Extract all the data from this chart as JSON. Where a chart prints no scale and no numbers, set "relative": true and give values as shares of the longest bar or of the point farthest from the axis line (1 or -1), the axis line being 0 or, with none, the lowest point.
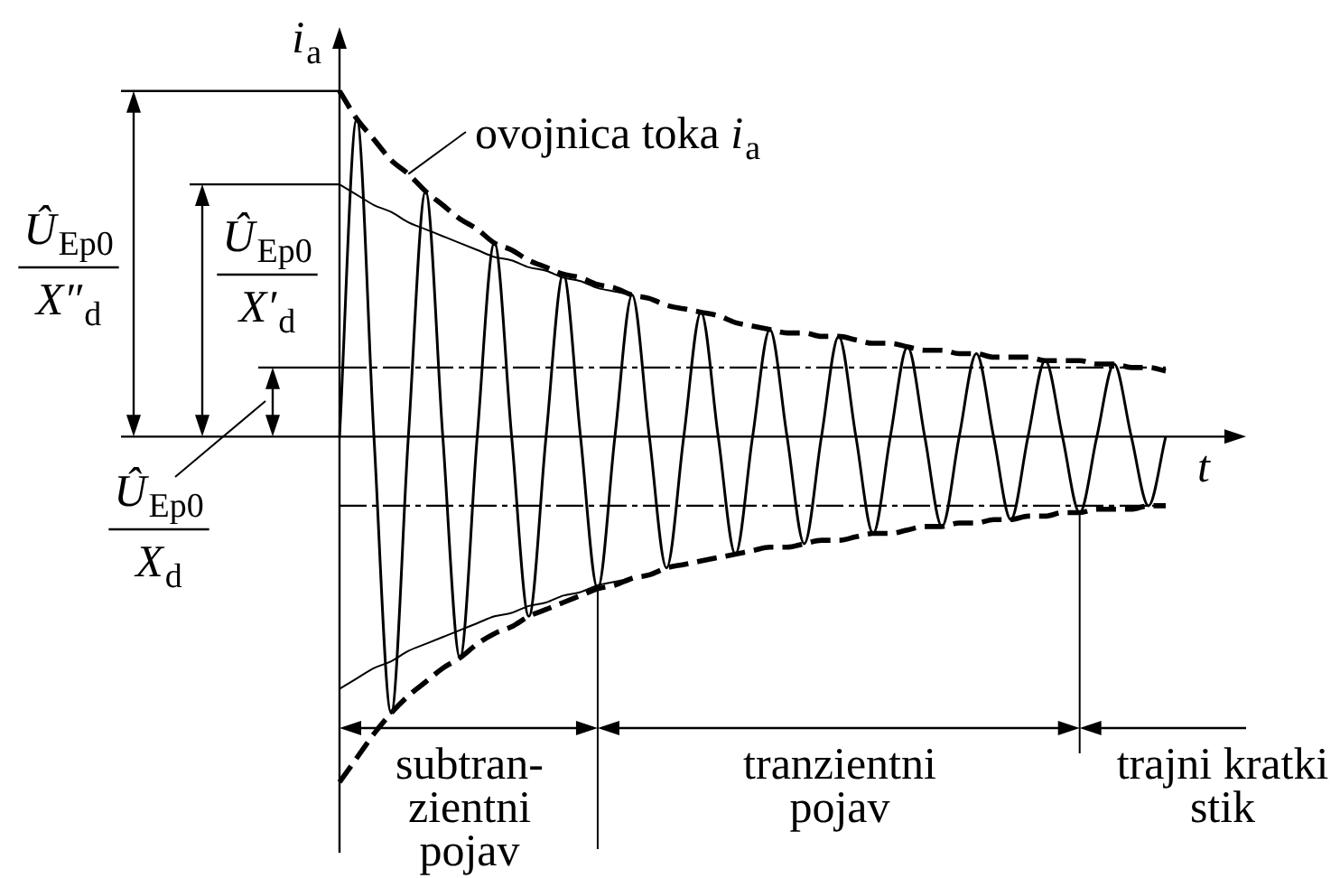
{
  "chart_data": {
    "type": "line",
    "relative": true,
    "xlabel": "t",
    "ylabel": "i$_{a}$",
    "legend": false,
    "marker": "none",
    "line_style": "solid",
    "categories": [
      null,
      null,
      null,
      null,
      null,
      null,
      null,
      null,
      null,
      null,
      null,
      null,
      null,
      null,
      null,
      null,
      null,
      null,
      null,
      null,
      null,
      null,
      null,
      null,
      null,
      null,
      null,
      null,
      null,
      null,
      null,
      null,
      null,
      null,
      null,
      null,
      null,
      null,
      null,
      null,
      null,
      null,
      null,
      null,
      null,
      null,
      null,
      null,
      null
    ],
    "series": [
      {
        "color": "#000000",
        "values": [
          0,
          0.92,
          0,
          -0.8,
          0,
          0.71,
          0,
          -0.64,
          0,
          0.56,
          0,
          -0.52,
          0,
          0.47,
          0,
          -0.44,
          0,
          0.41,
          0,
          -0.38,
          0,
          0.36,
          0,
          -0.34,
          0,
          0.31,
          0,
          -0.31,
          0,
          0.29,
          0,
          -0.28,
          0,
          0.26,
          0,
          -0.26,
          0,
          0.24,
          0,
          -0.24,
          0,
          0.22,
          0,
          -0.22,
          0,
          0.21,
          0,
          -0.2,
          0
        ]
      },
      {
        "color": "#000000",
        "line_style": "dashed",
        "values": [
          1,
          0.92,
          0.86,
          0.8,
          0.76,
          0.71,
          0.67,
          0.63,
          0.6,
          0.56,
          0.54,
          0.51,
          0.49,
          0.47,
          0.46,
          0.44,
          0.43,
          0.41,
          0.4,
          0.38,
          0.37,
          0.36,
          0.35,
          0.33,
          0.32,
          0.31,
          0.3,
          0.3,
          0.29,
          0.29,
          0.28,
          0.27,
          0.27,
          0.26,
          0.25,
          0.25,
          0.24,
          0.24,
          0.23,
          0.23,
          0.23,
          0.22,
          0.22,
          0.22,
          0.21,
          0.21,
          0.2,
          0.2,
          0.19
        ]
      },
      {
        "color": "#000000",
        "line_style": "dashed",
        "values": [
          -1,
          -0.93,
          -0.86,
          -0.8,
          -0.75,
          -0.71,
          -0.67,
          -0.64,
          -0.6,
          -0.57,
          -0.55,
          -0.52,
          -0.5,
          -0.48,
          -0.46,
          -0.44,
          -0.43,
          -0.41,
          -0.4,
          -0.38,
          -0.37,
          -0.36,
          -0.35,
          -0.34,
          -0.33,
          -0.32,
          -0.32,
          -0.31,
          -0.3,
          -0.3,
          -0.29,
          -0.28,
          -0.28,
          -0.27,
          -0.26,
          -0.26,
          -0.25,
          -0.25,
          -0.24,
          -0.24,
          -0.23,
          -0.23,
          -0.22,
          -0.22,
          -0.21,
          -0.21,
          -0.21,
          -0.2,
          -0.2
        ]
      },
      {
        "color": "#000000",
        "values": [
          0.73,
          0.7,
          0.67,
          0.65,
          0.62,
          0.6,
          0.58,
          0.56,
          0.54,
          0.52,
          0.51,
          0.49,
          0.48,
          0.46,
          0.45,
          0.43,
          0.42,
          0.41,
          null,
          null,
          null,
          null,
          null,
          null,
          null,
          null,
          null,
          null,
          null,
          null,
          null,
          null,
          null,
          null,
          null,
          null,
          null,
          null,
          null,
          null,
          null,
          null,
          null,
          null,
          null,
          null,
          null,
          null,
          null
        ]
      },
      {
        "color": "#000000",
        "values": [
          -0.73,
          -0.7,
          -0.67,
          -0.65,
          -0.62,
          -0.6,
          -0.58,
          -0.56,
          -0.54,
          -0.52,
          -0.51,
          -0.49,
          -0.48,
          -0.46,
          -0.45,
          -0.43,
          -0.42,
          -0.41,
          null,
          null,
          null,
          null,
          null,
          null,
          null,
          null,
          null,
          null,
          null,
          null,
          null,
          null,
          null,
          null,
          null,
          null,
          null,
          null,
          null,
          null,
          null,
          null,
          null,
          null,
          null,
          null,
          null,
          null,
          null
        ]
      }
    ],
    "ref_lines": [
      {
        "axis": "y",
        "value": 0.2,
        "line_style": "dashed"
      },
      {
        "axis": "y",
        "value": -0.2,
        "line_style": "dashed"
      }
    ],
    "annotations": [
      "Û$_{Ep0}$\nX″$_{d}$",
      "Û$_{Ep0}$\nX′$_{d}$",
      "Û$_{Ep0}$\nX$_{d}$",
      "ovojnica toka i$_{a}$",
      "subtran-\nzientni\npojav",
      "tranzientni\npojav",
      "trajni kratki\nstik"
    ]
  }
}
